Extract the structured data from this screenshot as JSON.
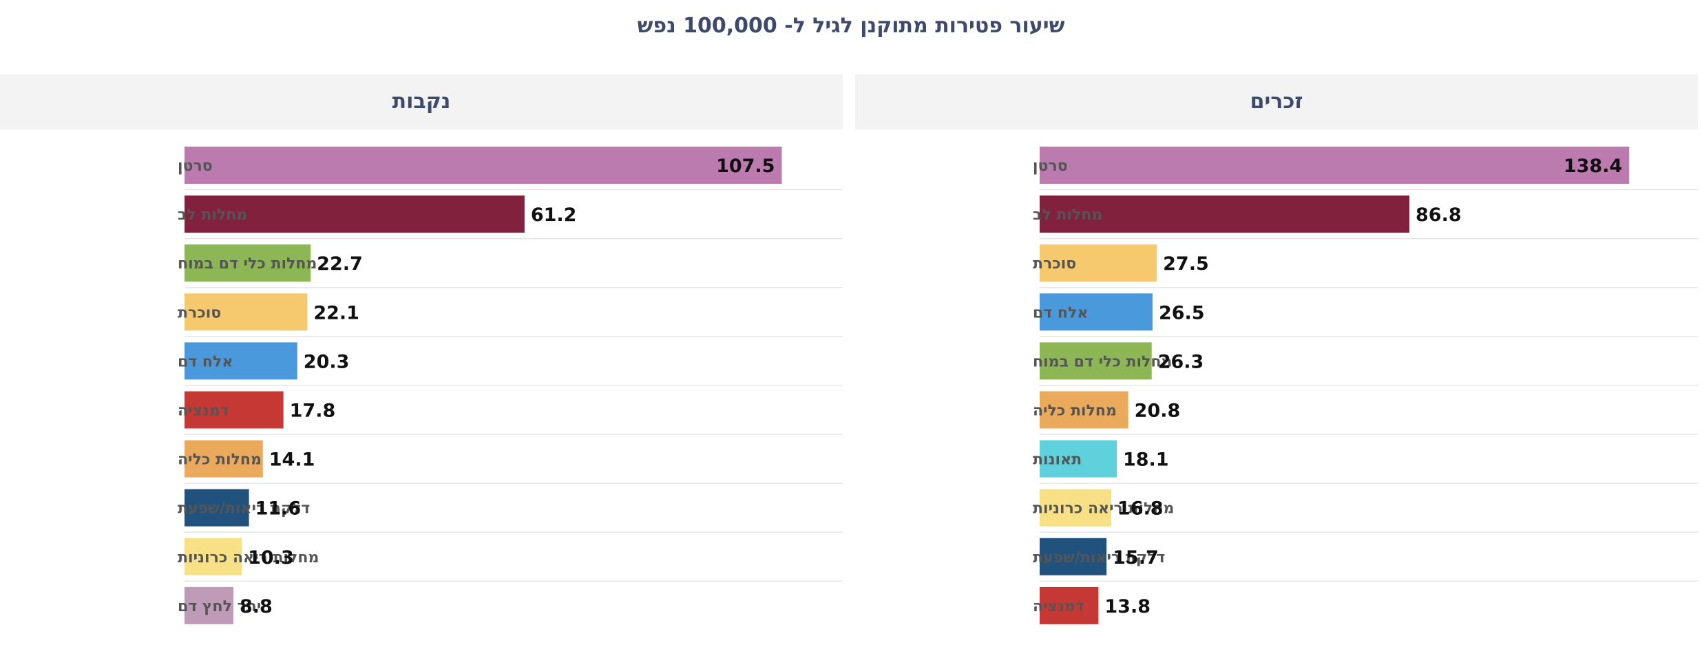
{
  "title": "שיעור פטירות מתוקנן לגיל ל- 100,000 נפש",
  "chart_data": [
    {
      "type": "bar",
      "orientation": "horizontal",
      "panel_title": "זכרים",
      "categories": [
        "סרטן",
        "מחלות לב",
        "סוכרת",
        "אלח דם",
        "מחלות כלי דם במוח",
        "מחלות כליה",
        "תאונות",
        "מחלות ריאה כרוניות",
        "דלקת ריאות/שפעת",
        "דמנציה"
      ],
      "values": [
        138.4,
        86.8,
        27.5,
        26.5,
        26.3,
        20.8,
        18.1,
        16.8,
        15.7,
        13.8
      ],
      "value_labels": [
        "138.4",
        "86.8",
        "27.5",
        "26.5",
        "26.3",
        "20.8",
        "18.1",
        "16.8",
        "15.7",
        "13.8"
      ],
      "colors": [
        "#bc7bae",
        "#81213e",
        "#f7c96e",
        "#4a99dc",
        "#8db755",
        "#eba95c",
        "#5fd1dd",
        "#f8e086",
        "#21527e",
        "#c63833"
      ],
      "xlim": [
        0,
        150
      ],
      "grid": false,
      "legend": "none"
    },
    {
      "type": "bar",
      "orientation": "horizontal",
      "panel_title": "נקבות",
      "categories": [
        "סרטן",
        "מחלות לב",
        "מחלות כלי דם במוח",
        "סוכרת",
        "אלח דם",
        "דמנציה",
        "מחלות כליה",
        "דלקת ריאות/שפעת",
        "מחלות ריאה כרוניות",
        "יתר לחץ דם"
      ],
      "values": [
        107.5,
        61.2,
        22.7,
        22.1,
        20.3,
        17.8,
        14.1,
        11.6,
        10.3,
        8.8
      ],
      "value_labels": [
        "107.5",
        "61.2",
        "22.7",
        "22.1",
        "20.3",
        "17.8",
        "14.1",
        "11.6",
        "10.3",
        "8.8"
      ],
      "colors": [
        "#bc7bae",
        "#81213e",
        "#8db755",
        "#f7c96e",
        "#4a99dc",
        "#c63833",
        "#eba95c",
        "#21527e",
        "#f8e086",
        "#c09bb7"
      ],
      "xlim": [
        0,
        115
      ],
      "grid": false,
      "legend": "none"
    }
  ]
}
